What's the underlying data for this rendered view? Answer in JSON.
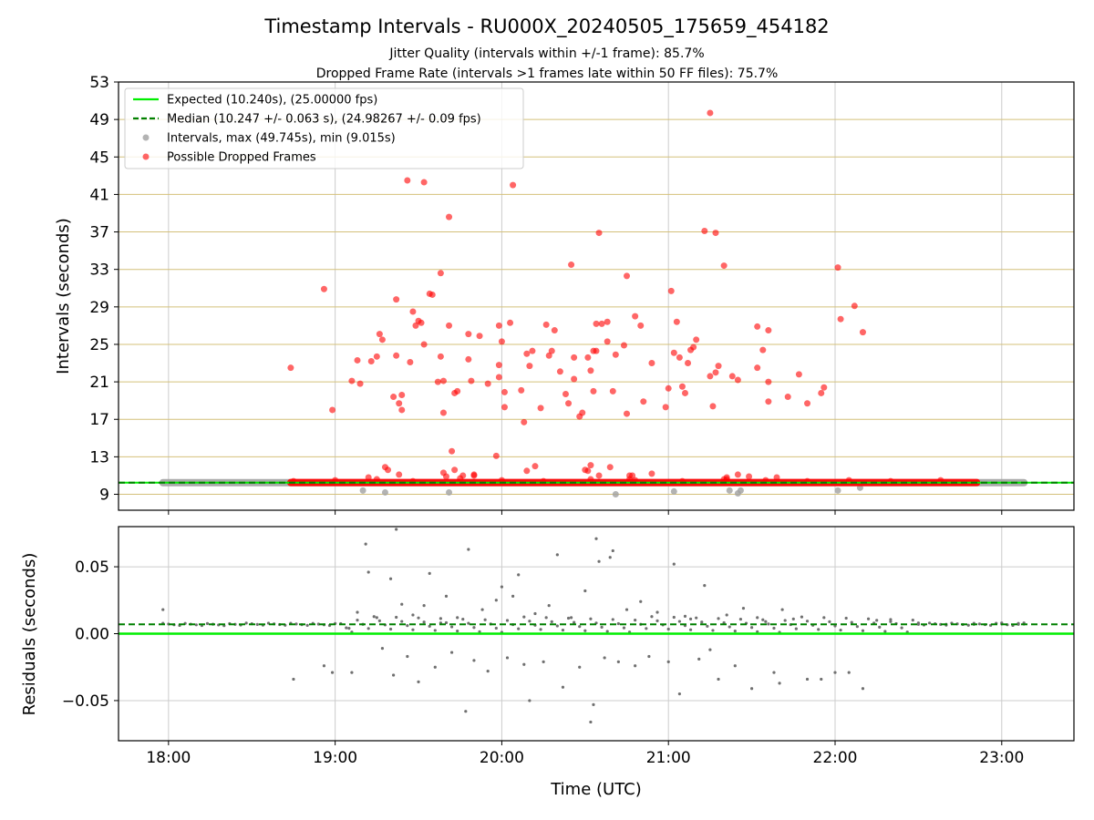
{
  "title": "Timestamp Intervals - RU000X_20240505_175659_454182",
  "subtitle_1": "Jitter Quality (intervals within +/-1 frame): 85.7%",
  "subtitle_2": "Dropped Frame Rate (intervals >1 frames late within 50 FF files): 75.7%",
  "colors": {
    "expected": "#00ee00",
    "median": "#008000",
    "intervals": "#a0a0a0",
    "dropped": "#ff0000",
    "residuals": "#707070",
    "hgrid_top": "#d4c07a",
    "grid": "#cccccc"
  },
  "chart_data": [
    {
      "type": "scatter",
      "ylabel": "Intervals (seconds)",
      "ylim": [
        7.3,
        53
      ],
      "yticks": [
        "9",
        "13",
        "17",
        "21",
        "25",
        "29",
        "33",
        "37",
        "41",
        "45",
        "49",
        "53"
      ],
      "xlim": [
        "17:42",
        "23:26"
      ],
      "grid": true,
      "legend_position": "upper-left",
      "legend": [
        "Expected (10.240s), (25.00000 fps)",
        "Median (10.247 +/- 0.063 s), (24.98267 +/- 0.09 fps)",
        "Intervals, max (49.745s), min (9.015s)",
        "Possible Dropped Frames"
      ],
      "expected_interval": 10.24,
      "median_interval": 10.247,
      "intervals_baseline": {
        "x_start": "17:58",
        "x_end": "23:08",
        "y": 10.24
      },
      "dropped_baseline": {
        "x_start": "18:44",
        "x_end": "22:51",
        "y": 10.25
      },
      "gray_outliers": [
        {
          "x": "19:10",
          "y": 9.4
        },
        {
          "x": "19:18",
          "y": 9.2
        },
        {
          "x": "19:41",
          "y": 9.2
        },
        {
          "x": "20:41",
          "y": 9.0
        },
        {
          "x": "21:02",
          "y": 9.3
        },
        {
          "x": "21:22",
          "y": 9.4
        },
        {
          "x": "21:25",
          "y": 9.1
        },
        {
          "x": "21:26",
          "y": 9.4
        },
        {
          "x": "22:01",
          "y": 9.4
        },
        {
          "x": "22:09",
          "y": 9.7
        }
      ],
      "dropped_points": [
        {
          "x": "18:44",
          "y": 22.5
        },
        {
          "x": "18:56",
          "y": 30.9
        },
        {
          "x": "18:59",
          "y": 18.0
        },
        {
          "x": "19:06",
          "y": 21.1
        },
        {
          "x": "19:08",
          "y": 23.3
        },
        {
          "x": "19:09",
          "y": 20.8
        },
        {
          "x": "19:12",
          "y": 10.8
        },
        {
          "x": "19:13",
          "y": 23.2
        },
        {
          "x": "19:15",
          "y": 23.7
        },
        {
          "x": "19:16",
          "y": 26.1
        },
        {
          "x": "19:17",
          "y": 25.5
        },
        {
          "x": "19:18",
          "y": 11.9
        },
        {
          "x": "19:19",
          "y": 11.6
        },
        {
          "x": "19:21",
          "y": 19.4
        },
        {
          "x": "19:22",
          "y": 29.8
        },
        {
          "x": "19:22",
          "y": 23.8
        },
        {
          "x": "19:23",
          "y": 18.7
        },
        {
          "x": "19:23",
          "y": 11.1
        },
        {
          "x": "19:24",
          "y": 19.6
        },
        {
          "x": "19:24",
          "y": 18.0
        },
        {
          "x": "19:26",
          "y": 42.5
        },
        {
          "x": "19:27",
          "y": 23.1
        },
        {
          "x": "19:28",
          "y": 28.5
        },
        {
          "x": "19:29",
          "y": 27.0
        },
        {
          "x": "19:30",
          "y": 27.5
        },
        {
          "x": "19:31",
          "y": 27.3
        },
        {
          "x": "19:32",
          "y": 25.0
        },
        {
          "x": "19:32",
          "y": 42.3
        },
        {
          "x": "19:34",
          "y": 30.4
        },
        {
          "x": "19:35",
          "y": 30.3
        },
        {
          "x": "19:37",
          "y": 21.0
        },
        {
          "x": "19:38",
          "y": 23.7
        },
        {
          "x": "19:38",
          "y": 32.6
        },
        {
          "x": "19:39",
          "y": 21.1
        },
        {
          "x": "19:39",
          "y": 17.7
        },
        {
          "x": "19:39",
          "y": 11.3
        },
        {
          "x": "19:40",
          "y": 10.9
        },
        {
          "x": "19:41",
          "y": 27.0
        },
        {
          "x": "19:41",
          "y": 38.6
        },
        {
          "x": "19:42",
          "y": 13.6
        },
        {
          "x": "19:43",
          "y": 11.6
        },
        {
          "x": "19:43",
          "y": 19.8
        },
        {
          "x": "19:44",
          "y": 20.0
        },
        {
          "x": "19:46",
          "y": 11.0
        },
        {
          "x": "19:48",
          "y": 26.1
        },
        {
          "x": "19:48",
          "y": 23.4
        },
        {
          "x": "19:49",
          "y": 21.1
        },
        {
          "x": "19:50",
          "y": 11.0
        },
        {
          "x": "19:50",
          "y": 11.1
        },
        {
          "x": "19:52",
          "y": 25.9
        },
        {
          "x": "19:55",
          "y": 20.8
        },
        {
          "x": "19:58",
          "y": 13.1
        },
        {
          "x": "19:59",
          "y": 27.0
        },
        {
          "x": "19:59",
          "y": 22.8
        },
        {
          "x": "19:59",
          "y": 21.5
        },
        {
          "x": "20:00",
          "y": 25.3
        },
        {
          "x": "20:01",
          "y": 18.3
        },
        {
          "x": "20:01",
          "y": 19.9
        },
        {
          "x": "20:03",
          "y": 27.3
        },
        {
          "x": "20:04",
          "y": 42.0
        },
        {
          "x": "20:07",
          "y": 20.1
        },
        {
          "x": "20:08",
          "y": 16.7
        },
        {
          "x": "20:09",
          "y": 24.0
        },
        {
          "x": "20:09",
          "y": 11.5
        },
        {
          "x": "20:10",
          "y": 22.7
        },
        {
          "x": "20:11",
          "y": 24.3
        },
        {
          "x": "20:12",
          "y": 12.0
        },
        {
          "x": "20:14",
          "y": 18.2
        },
        {
          "x": "20:16",
          "y": 27.1
        },
        {
          "x": "20:17",
          "y": 23.8
        },
        {
          "x": "20:18",
          "y": 24.3
        },
        {
          "x": "20:19",
          "y": 26.5
        },
        {
          "x": "20:21",
          "y": 22.1
        },
        {
          "x": "20:23",
          "y": 19.7
        },
        {
          "x": "20:24",
          "y": 18.7
        },
        {
          "x": "20:25",
          "y": 33.5
        },
        {
          "x": "20:26",
          "y": 23.6
        },
        {
          "x": "20:26",
          "y": 21.3
        },
        {
          "x": "20:28",
          "y": 17.3
        },
        {
          "x": "20:29",
          "y": 17.7
        },
        {
          "x": "20:30",
          "y": 11.6
        },
        {
          "x": "20:31",
          "y": 23.6
        },
        {
          "x": "20:31",
          "y": 11.5
        },
        {
          "x": "20:32",
          "y": 12.1
        },
        {
          "x": "20:32",
          "y": 22.2
        },
        {
          "x": "20:33",
          "y": 24.3
        },
        {
          "x": "20:33",
          "y": 20.0
        },
        {
          "x": "20:34",
          "y": 24.3
        },
        {
          "x": "20:34",
          "y": 27.2
        },
        {
          "x": "20:35",
          "y": 36.9
        },
        {
          "x": "20:35",
          "y": 11.0
        },
        {
          "x": "20:36",
          "y": 27.2
        },
        {
          "x": "20:38",
          "y": 27.4
        },
        {
          "x": "20:38",
          "y": 25.3
        },
        {
          "x": "20:39",
          "y": 11.9
        },
        {
          "x": "20:40",
          "y": 20.0
        },
        {
          "x": "20:41",
          "y": 23.9
        },
        {
          "x": "20:44",
          "y": 24.9
        },
        {
          "x": "20:45",
          "y": 17.6
        },
        {
          "x": "20:45",
          "y": 32.3
        },
        {
          "x": "20:46",
          "y": 11.0
        },
        {
          "x": "20:46",
          "y": 10.6
        },
        {
          "x": "20:47",
          "y": 11.0
        },
        {
          "x": "20:48",
          "y": 28.0
        },
        {
          "x": "20:50",
          "y": 27.0
        },
        {
          "x": "20:51",
          "y": 18.9
        },
        {
          "x": "20:54",
          "y": 23.0
        },
        {
          "x": "20:54",
          "y": 11.2
        },
        {
          "x": "20:59",
          "y": 18.3
        },
        {
          "x": "21:00",
          "y": 20.3
        },
        {
          "x": "21:01",
          "y": 30.7
        },
        {
          "x": "21:02",
          "y": 24.1
        },
        {
          "x": "21:03",
          "y": 27.4
        },
        {
          "x": "21:04",
          "y": 23.6
        },
        {
          "x": "21:05",
          "y": 20.5
        },
        {
          "x": "21:06",
          "y": 19.8
        },
        {
          "x": "21:07",
          "y": 23.0
        },
        {
          "x": "21:08",
          "y": 24.4
        },
        {
          "x": "21:09",
          "y": 24.7
        },
        {
          "x": "21:10",
          "y": 25.5
        },
        {
          "x": "21:13",
          "y": 37.1
        },
        {
          "x": "21:15",
          "y": 21.6
        },
        {
          "x": "21:15",
          "y": 49.7
        },
        {
          "x": "21:16",
          "y": 18.4
        },
        {
          "x": "21:17",
          "y": 22.0
        },
        {
          "x": "21:17",
          "y": 36.9
        },
        {
          "x": "21:18",
          "y": 22.7
        },
        {
          "x": "21:20",
          "y": 33.4
        },
        {
          "x": "21:21",
          "y": 10.6
        },
        {
          "x": "21:21",
          "y": 10.8
        },
        {
          "x": "21:23",
          "y": 21.6
        },
        {
          "x": "21:25",
          "y": 21.2
        },
        {
          "x": "21:25",
          "y": 11.1
        },
        {
          "x": "21:29",
          "y": 10.9
        },
        {
          "x": "21:32",
          "y": 26.9
        },
        {
          "x": "21:32",
          "y": 22.5
        },
        {
          "x": "21:34",
          "y": 24.4
        },
        {
          "x": "21:36",
          "y": 18.9
        },
        {
          "x": "21:36",
          "y": 26.5
        },
        {
          "x": "21:36",
          "y": 21.0
        },
        {
          "x": "21:39",
          "y": 10.8
        },
        {
          "x": "21:43",
          "y": 19.4
        },
        {
          "x": "21:47",
          "y": 21.8
        },
        {
          "x": "21:50",
          "y": 18.7
        },
        {
          "x": "21:55",
          "y": 19.8
        },
        {
          "x": "21:56",
          "y": 20.4
        },
        {
          "x": "22:01",
          "y": 33.2
        },
        {
          "x": "22:02",
          "y": 27.7
        },
        {
          "x": "22:07",
          "y": 29.1
        },
        {
          "x": "22:10",
          "y": 26.3
        }
      ],
      "dense_band_points": [
        {
          "x": "18:45",
          "y": 10.4
        },
        {
          "x": "19:00",
          "y": 10.5
        },
        {
          "x": "19:15",
          "y": 10.6
        },
        {
          "x": "19:28",
          "y": 10.4
        },
        {
          "x": "19:45",
          "y": 10.7
        },
        {
          "x": "20:00",
          "y": 10.5
        },
        {
          "x": "20:15",
          "y": 10.4
        },
        {
          "x": "20:32",
          "y": 10.6
        },
        {
          "x": "20:48",
          "y": 10.5
        },
        {
          "x": "21:05",
          "y": 10.4
        },
        {
          "x": "21:20",
          "y": 10.6
        },
        {
          "x": "21:35",
          "y": 10.5
        },
        {
          "x": "21:50",
          "y": 10.4
        },
        {
          "x": "22:05",
          "y": 10.5
        },
        {
          "x": "22:20",
          "y": 10.4
        },
        {
          "x": "22:38",
          "y": 10.5
        }
      ]
    },
    {
      "type": "scatter",
      "ylabel": "Residuals (seconds)",
      "xlabel": "Time (UTC)",
      "ylim": [
        -0.08,
        0.08
      ],
      "yticks": [
        "−0.05",
        "0.00",
        "0.05"
      ],
      "xticks": [
        "18:00",
        "19:00",
        "20:00",
        "21:00",
        "22:00",
        "23:00"
      ],
      "xlim": [
        "17:42",
        "23:26"
      ],
      "grid": true,
      "expected_residual": 0.0,
      "median_residual": 0.007,
      "residual_points": [
        {
          "x": "17:58",
          "y": 0.018
        },
        {
          "x": "18:45",
          "y": -0.034
        },
        {
          "x": "18:56",
          "y": -0.024
        },
        {
          "x": "18:59",
          "y": -0.029
        },
        {
          "x": "19:05",
          "y": 0.004
        },
        {
          "x": "19:06",
          "y": -0.029
        },
        {
          "x": "19:08",
          "y": 0.016
        },
        {
          "x": "19:11",
          "y": 0.067
        },
        {
          "x": "19:12",
          "y": 0.046
        },
        {
          "x": "19:15",
          "y": 0.012
        },
        {
          "x": "19:17",
          "y": -0.011
        },
        {
          "x": "19:20",
          "y": 0.041
        },
        {
          "x": "19:21",
          "y": -0.031
        },
        {
          "x": "19:22",
          "y": 0.078
        },
        {
          "x": "19:24",
          "y": 0.022
        },
        {
          "x": "19:26",
          "y": -0.017
        },
        {
          "x": "19:28",
          "y": 0.014
        },
        {
          "x": "19:30",
          "y": -0.036
        },
        {
          "x": "19:32",
          "y": 0.021
        },
        {
          "x": "19:34",
          "y": 0.045
        },
        {
          "x": "19:36",
          "y": -0.025
        },
        {
          "x": "19:38",
          "y": 0.008
        },
        {
          "x": "19:40",
          "y": 0.028
        },
        {
          "x": "19:42",
          "y": -0.014
        },
        {
          "x": "19:44",
          "y": 0.012
        },
        {
          "x": "19:47",
          "y": -0.058
        },
        {
          "x": "19:48",
          "y": 0.063
        },
        {
          "x": "19:50",
          "y": -0.02
        },
        {
          "x": "19:53",
          "y": 0.018
        },
        {
          "x": "19:55",
          "y": -0.028
        },
        {
          "x": "19:58",
          "y": 0.025
        },
        {
          "x": "20:00",
          "y": 0.035
        },
        {
          "x": "20:02",
          "y": -0.018
        },
        {
          "x": "20:04",
          "y": 0.028
        },
        {
          "x": "20:06",
          "y": 0.044
        },
        {
          "x": "20:08",
          "y": -0.023
        },
        {
          "x": "20:10",
          "y": -0.05
        },
        {
          "x": "20:12",
          "y": 0.015
        },
        {
          "x": "20:15",
          "y": -0.021
        },
        {
          "x": "20:17",
          "y": 0.021
        },
        {
          "x": "20:20",
          "y": 0.059
        },
        {
          "x": "20:22",
          "y": -0.04
        },
        {
          "x": "20:25",
          "y": 0.012
        },
        {
          "x": "20:28",
          "y": -0.025
        },
        {
          "x": "20:30",
          "y": 0.032
        },
        {
          "x": "20:32",
          "y": -0.066
        },
        {
          "x": "20:33",
          "y": -0.053
        },
        {
          "x": "20:34",
          "y": 0.071
        },
        {
          "x": "20:35",
          "y": 0.054
        },
        {
          "x": "20:37",
          "y": -0.018
        },
        {
          "x": "20:39",
          "y": 0.057
        },
        {
          "x": "20:40",
          "y": 0.062
        },
        {
          "x": "20:42",
          "y": -0.021
        },
        {
          "x": "20:45",
          "y": 0.018
        },
        {
          "x": "20:48",
          "y": -0.024
        },
        {
          "x": "20:50",
          "y": 0.024
        },
        {
          "x": "20:53",
          "y": -0.017
        },
        {
          "x": "20:56",
          "y": 0.016
        },
        {
          "x": "21:00",
          "y": -0.021
        },
        {
          "x": "21:02",
          "y": 0.052
        },
        {
          "x": "21:04",
          "y": -0.045
        },
        {
          "x": "21:06",
          "y": 0.013
        },
        {
          "x": "21:08",
          "y": 0.011
        },
        {
          "x": "21:11",
          "y": -0.019
        },
        {
          "x": "21:13",
          "y": 0.036
        },
        {
          "x": "21:15",
          "y": -0.012
        },
        {
          "x": "21:18",
          "y": -0.034
        },
        {
          "x": "21:21",
          "y": 0.014
        },
        {
          "x": "21:24",
          "y": -0.024
        },
        {
          "x": "21:27",
          "y": 0.019
        },
        {
          "x": "21:30",
          "y": -0.041
        },
        {
          "x": "21:32",
          "y": 0.012
        },
        {
          "x": "21:35",
          "y": 0.009
        },
        {
          "x": "21:38",
          "y": -0.029
        },
        {
          "x": "21:40",
          "y": -0.037
        },
        {
          "x": "21:41",
          "y": 0.018
        },
        {
          "x": "21:45",
          "y": 0.011
        },
        {
          "x": "21:50",
          "y": -0.034
        },
        {
          "x": "21:55",
          "y": -0.034
        },
        {
          "x": "22:00",
          "y": -0.029
        },
        {
          "x": "22:05",
          "y": -0.029
        },
        {
          "x": "22:10",
          "y": -0.041
        },
        {
          "x": "22:15",
          "y": 0.01
        },
        {
          "x": "22:20",
          "y": 0.009
        },
        {
          "x": "22:30",
          "y": 0.008
        },
        {
          "x": "22:40",
          "y": 0.007
        },
        {
          "x": "22:50",
          "y": 0.007
        },
        {
          "x": "23:00",
          "y": 0.008
        },
        {
          "x": "23:06",
          "y": 0.007
        },
        {
          "x": "23:08",
          "y": 0.008
        }
      ]
    }
  ]
}
